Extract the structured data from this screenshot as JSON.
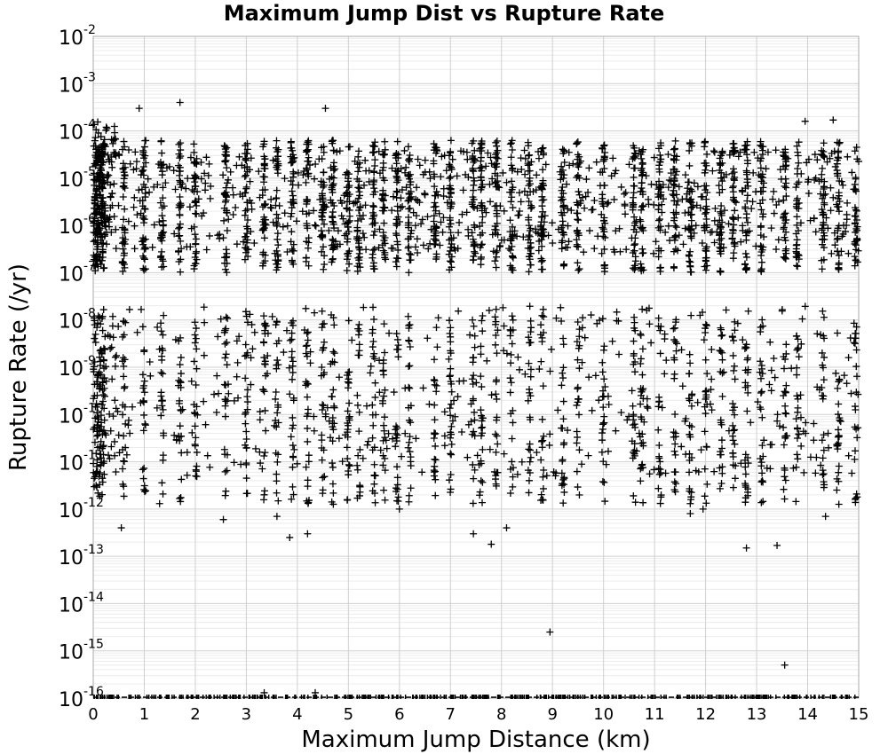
{
  "chart_data": {
    "type": "scatter",
    "title": "Maximum Jump Dist vs Rupture Rate",
    "xlabel": "Maximum Jump Distance (km)",
    "ylabel": "Rupture Rate (/yr)",
    "xlim": [
      0,
      15
    ],
    "ylim": [
      1e-16,
      0.01
    ],
    "yscale": "log",
    "grid": true,
    "marker": "plus",
    "color": "#000000",
    "x_ticks": [
      "0",
      "1",
      "2",
      "3",
      "4",
      "5",
      "6",
      "7",
      "8",
      "9",
      "10",
      "11",
      "12",
      "13",
      "14",
      "15"
    ],
    "y_ticks": [
      {
        "base": "10",
        "exp": "-2"
      },
      {
        "base": "10",
        "exp": "-3"
      },
      {
        "base": "10",
        "exp": "-4"
      },
      {
        "base": "10",
        "exp": "-5"
      },
      {
        "base": "10",
        "exp": "-6"
      },
      {
        "base": "10",
        "exp": "-7"
      },
      {
        "base": "10",
        "exp": "-8"
      },
      {
        "base": "10",
        "exp": "-9"
      },
      {
        "base": "10",
        "exp": "-10"
      },
      {
        "base": "10",
        "exp": "-11"
      },
      {
        "base": "10",
        "exp": "-12"
      },
      {
        "base": "10",
        "exp": "-13"
      },
      {
        "base": "10",
        "exp": "-14"
      },
      {
        "base": "10",
        "exp": "-15"
      },
      {
        "base": "10",
        "exp": "-16"
      }
    ],
    "columns": [
      0.0,
      0.05,
      0.1,
      0.15,
      0.2,
      0.6,
      1.0,
      1.35,
      1.7,
      2.0,
      2.6,
      3.0,
      3.35,
      3.6,
      3.9,
      4.2,
      4.5,
      4.7,
      5.0,
      5.2,
      5.5,
      5.7,
      5.95,
      6.2,
      6.7,
      7.0,
      7.45,
      7.6,
      7.9,
      8.2,
      8.55,
      8.8,
      9.2,
      9.5,
      10.0,
      10.6,
      10.75,
      11.1,
      11.4,
      11.7,
      12.0,
      12.3,
      12.55,
      12.8,
      13.1,
      13.55,
      13.8,
      14.3,
      14.6,
      14.95
    ],
    "outliers": [
      {
        "x": 0.55,
        "y": 4e-13
      },
      {
        "x": 2.55,
        "y": 6e-13
      },
      {
        "x": 3.35,
        "y": 2e-12
      },
      {
        "x": 3.6,
        "y": 7e-13
      },
      {
        "x": 3.85,
        "y": 2.5e-13
      },
      {
        "x": 4.2,
        "y": 3e-13
      },
      {
        "x": 7.45,
        "y": 3e-13
      },
      {
        "x": 7.8,
        "y": 1.8e-13
      },
      {
        "x": 8.1,
        "y": 4e-13
      },
      {
        "x": 8.95,
        "y": 2.5e-15
      },
      {
        "x": 11.7,
        "y": 8e-13
      },
      {
        "x": 11.95,
        "y": 1e-12
      },
      {
        "x": 12.8,
        "y": 1.5e-13
      },
      {
        "x": 13.4,
        "y": 1.7e-13
      },
      {
        "x": 13.55,
        "y": 5e-16
      },
      {
        "x": 14.35,
        "y": 7e-13
      },
      {
        "x": 1.3,
        "y": 1.3e-12
      },
      {
        "x": 6.0,
        "y": 1e-12
      },
      {
        "x": 3.35,
        "y": 1.3e-16
      },
      {
        "x": 4.35,
        "y": 1.3e-16
      },
      {
        "x": 1.7,
        "y": 0.0004
      },
      {
        "x": 0.9,
        "y": 0.0003
      },
      {
        "x": 4.55,
        "y": 0.0003
      },
      {
        "x": 13.95,
        "y": 0.00016
      },
      {
        "x": 14.5,
        "y": 0.00017
      }
    ],
    "floor_value": 1e-16
  }
}
